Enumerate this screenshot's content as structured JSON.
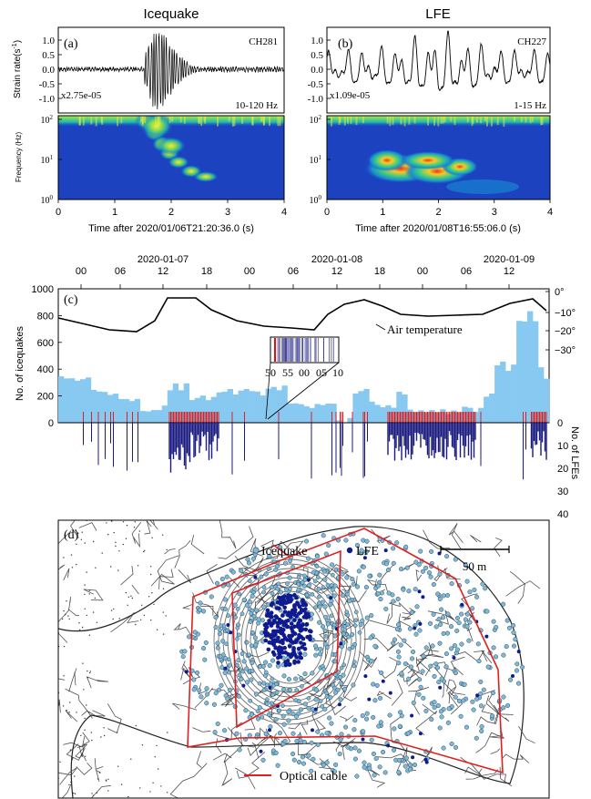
{
  "panel_a": {
    "title": "Icequake",
    "label": "(a)",
    "channel": "CH281",
    "scale": "x2.75e-05",
    "band": "10-120 Hz",
    "ylabel_top": "Strain rate(s",
    "ylabel_sup": "-1",
    "ylabel_close": ")",
    "ylabel_bottom": "Frequency (Hz)",
    "xlabel": "Time after 2020/01/06T21:20:36.0 (s)",
    "yticks": [
      "1.0",
      "0.5",
      "0.0",
      "-0.5",
      "-1.0"
    ],
    "freq_ticks": [
      "10",
      "10",
      "10"
    ],
    "freq_exp": [
      "2",
      "1",
      "0"
    ],
    "xticks": [
      "0",
      "1",
      "2",
      "3",
      "4"
    ]
  },
  "panel_b": {
    "title": "LFE",
    "label": "(b)",
    "channel": "CH227",
    "scale": "x1.09e-05",
    "band": "1-15 Hz",
    "yticks": [
      "1.0",
      "0.5",
      "0.0",
      "-0.5",
      "-1.0"
    ],
    "freq_ticks": [
      "10",
      "10",
      "10"
    ],
    "freq_exp": [
      "2",
      "1",
      "0"
    ],
    "xlabel": "Time after 2020/01/08T16:55:06.0 (s)",
    "xticks": [
      "0",
      "1",
      "2",
      "3",
      "4"
    ]
  },
  "panel_c": {
    "label": "(c)",
    "dates": [
      "2020-01-07",
      "2020-01-08",
      "2020-01-09"
    ],
    "hours": [
      "00",
      "06",
      "12",
      "18",
      "00",
      "06",
      "12",
      "18",
      "00",
      "06",
      "12"
    ],
    "ylabel_left": "No. of icequakes",
    "ylabel_right": "No. of LFEs",
    "left_ticks": [
      "1000",
      "800",
      "600",
      "400",
      "200",
      "0"
    ],
    "right_ticks": [
      "0",
      "10",
      "20",
      "30",
      "40"
    ],
    "temp_ticks": [
      "0°",
      "−10°",
      "−20°",
      "−30°"
    ],
    "temp_label": "Air temperature",
    "inset_ticks": [
      "50",
      "55",
      "00",
      "05",
      "10"
    ]
  },
  "panel_d": {
    "label": "(d)",
    "legend_icequake": "Icequake",
    "legend_lfe": "LFE",
    "scale_label": "50 m",
    "cable_label": "Optical cable"
  },
  "colors": {
    "icequake_bar": "#87c9f0",
    "lfe_bar": "#1a1a80",
    "lfe_mark": "#e01010",
    "cable": "#e02020",
    "icequake_dot": "#7fb9d6",
    "lfe_dot": "#101a90"
  }
}
